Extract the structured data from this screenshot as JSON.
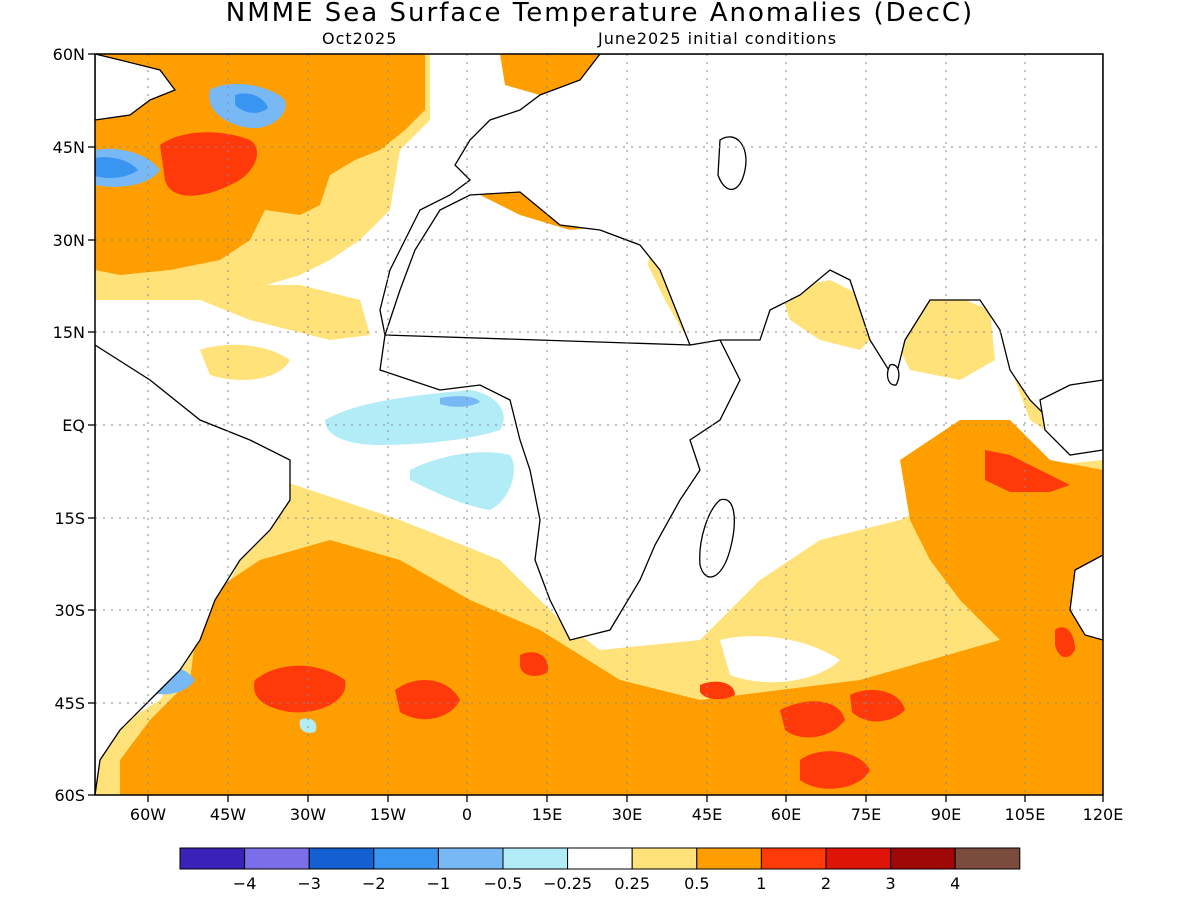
{
  "title": "NMME Sea Surface Temperature Anomalies (DecC)",
  "subtitle_left": "Oct2025",
  "subtitle_right": "June2025 initial conditions",
  "lat_labels": [
    "60N",
    "45N",
    "30N",
    "15N",
    "EQ",
    "15S",
    "30S",
    "45S",
    "60S"
  ],
  "lon_labels": [
    "60W",
    "45W",
    "30W",
    "15W",
    "0",
    "15E",
    "30E",
    "45E",
    "60E",
    "75E",
    "90E",
    "105E",
    "120E"
  ],
  "colorbar": {
    "colors": [
      "#3a22b8",
      "#7b6ee8",
      "#1460d2",
      "#3a95f0",
      "#78b8f5",
      "#b1ecf7",
      "#ffffff",
      "#ffe27a",
      "#ff9e00",
      "#ff3a0a",
      "#dd1407",
      "#a00707",
      "#7b4b3e"
    ],
    "labels": [
      "−4",
      "−3",
      "−2",
      "−1",
      "−0.5",
      "−0.25",
      "0.25",
      "0.5",
      "1",
      "2",
      "3",
      "4"
    ]
  }
}
